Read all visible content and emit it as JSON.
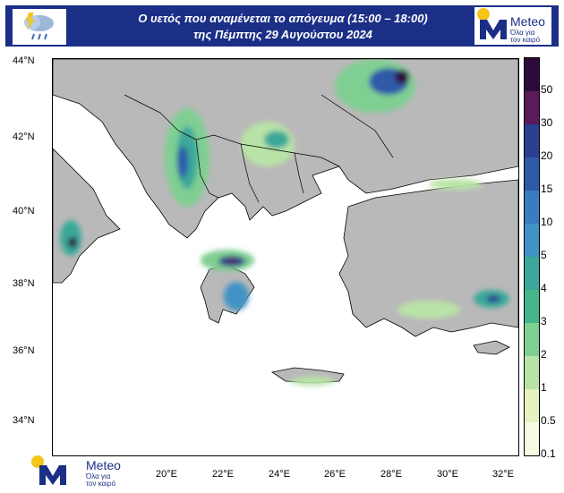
{
  "header": {
    "line1": "Ο υετός που αναμένεται το απόγευμα (15:00 – 18:00)",
    "line2": "της Πέμπτης 29 Αυγούστου 2024"
  },
  "logo": {
    "name": "Meteo",
    "tagline1": "Όλα για",
    "tagline2": "τον καιρό"
  },
  "icons": {
    "weather": "rain-cloud-lightning-icon",
    "logo_mark": "meteo-m-logo"
  },
  "lat_ticks": [
    "44°N",
    "42°N",
    "40°N",
    "38°N",
    "36°N",
    "34°N"
  ],
  "lon_ticks": [
    "20°E",
    "22°E",
    "24°E",
    "26°E",
    "28°E",
    "30°E",
    "32°E"
  ],
  "legend": {
    "labels": [
      "50",
      "30",
      "20",
      "15",
      "10",
      "5",
      "4",
      "3",
      "2",
      "1",
      "0.5",
      "0.1"
    ],
    "colors": [
      "#2e0a3c",
      "#5a1a5c",
      "#2a3f8f",
      "#2e5aa8",
      "#3b7bbf",
      "#3f93c4",
      "#3aa89a",
      "#45b58a",
      "#7fcf92",
      "#b9e3a6",
      "#e4f3bf",
      "#f6fbe4"
    ]
  },
  "colors": {
    "land": "#b9b9b9",
    "sea": "#ffffff",
    "header_bg": "#1b2f86",
    "accent": "#f5c518"
  }
}
